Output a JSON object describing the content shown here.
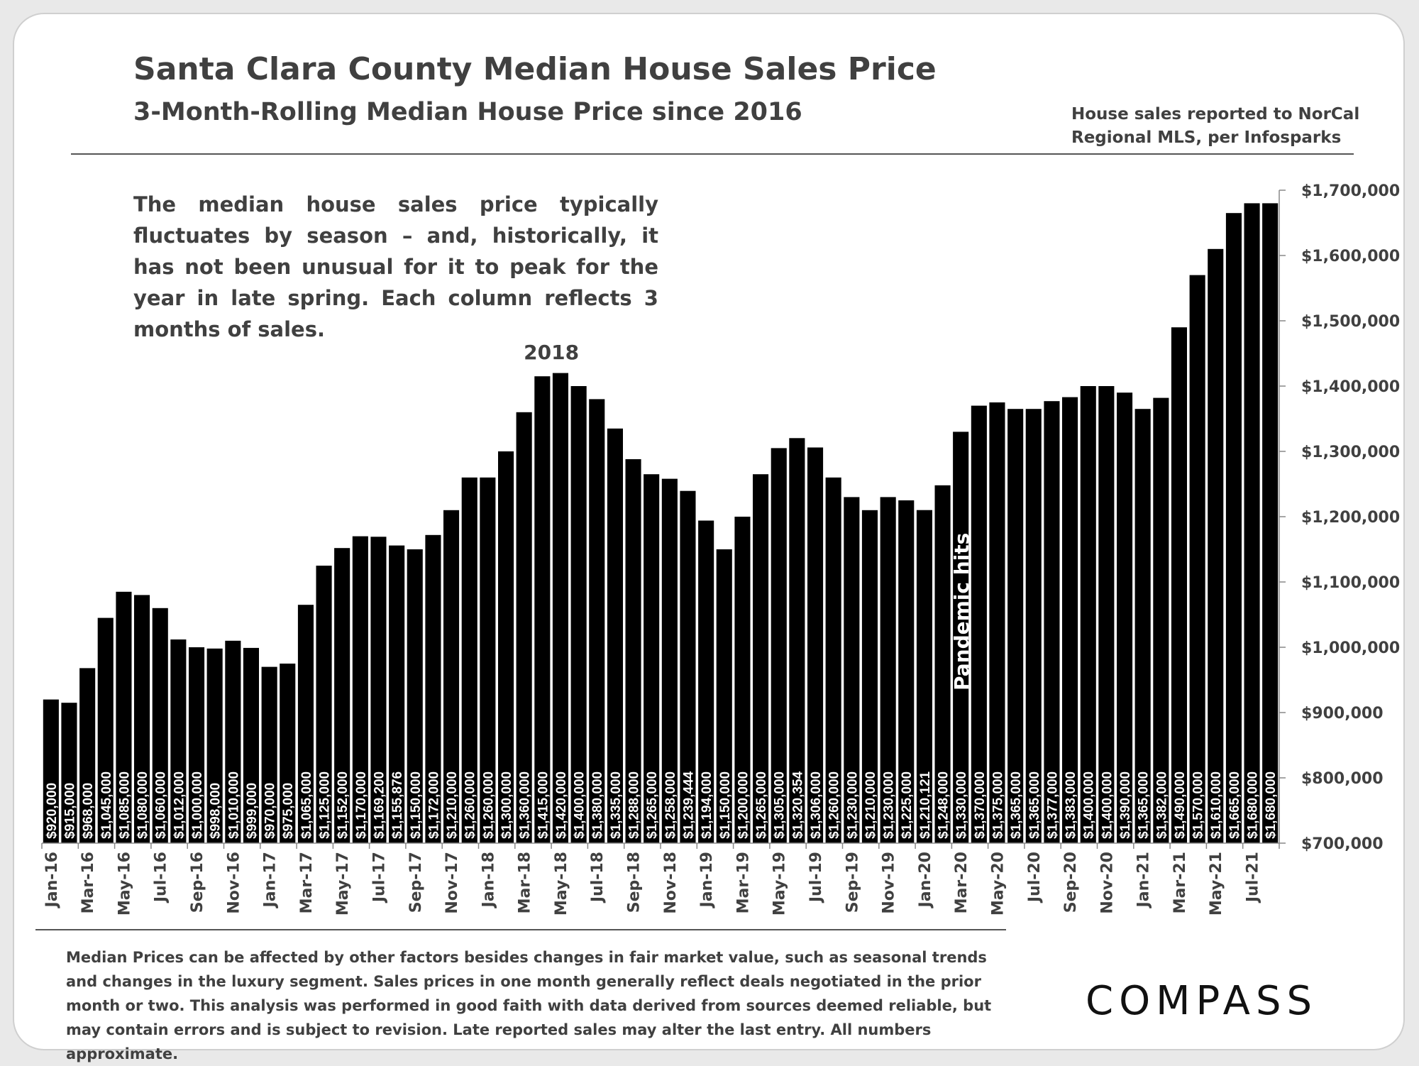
{
  "header": {
    "title": "Santa Clara County Median House Sales Price",
    "subtitle": "3-Month-Rolling Median House Price since 2016",
    "source_line1": "House sales reported to NorCal",
    "source_line2": "Regional MLS, per Infosparks"
  },
  "description": "The median house sales price typically fluctuates by season – and, historically, it has not been unusual for it to peak for the year in late spring. Each column reflects 3 months of sales.",
  "footnote": "Median Prices can be affected by other factors besides changes in fair market value, such as seasonal trends and changes in the luxury segment. Sales prices in one month generally reflect deals negotiated in the prior month or two. This analysis was performed in good faith with data derived from sources deemed reliable, but may contain errors and is subject to revision. Late reported sales may alter the last entry. All numbers approximate.",
  "logo": "COMPASS",
  "colors": {
    "bar": "#000000",
    "bar_label": "#ffffff",
    "text": "#404040",
    "rule": "#555555"
  },
  "chart_data": {
    "type": "bar",
    "title": "Santa Clara County Median House Sales Price",
    "subtitle": "3-Month-Rolling Median House Price since 2016",
    "categories": [
      "Jan-16",
      "Feb-16",
      "Mar-16",
      "Apr-16",
      "May-16",
      "Jun-16",
      "Jul-16",
      "Aug-16",
      "Sep-16",
      "Oct-16",
      "Nov-16",
      "Dec-16",
      "Jan-17",
      "Feb-17",
      "Mar-17",
      "Apr-17",
      "May-17",
      "Jun-17",
      "Jul-17",
      "Aug-17",
      "Sep-17",
      "Oct-17",
      "Nov-17",
      "Dec-17",
      "Jan-18",
      "Feb-18",
      "Mar-18",
      "Apr-18",
      "May-18",
      "Jun-18",
      "Jul-18",
      "Aug-18",
      "Sep-18",
      "Oct-18",
      "Nov-18",
      "Dec-18",
      "Jan-19",
      "Feb-19",
      "Mar-19",
      "Apr-19",
      "May-19",
      "Jun-19",
      "Jul-19",
      "Aug-19",
      "Sep-19",
      "Oct-19",
      "Nov-19",
      "Dec-19",
      "Jan-20",
      "Feb-20",
      "Mar-20",
      "Apr-20",
      "May-20",
      "Jun-20",
      "Jul-20",
      "Aug-20",
      "Sep-20",
      "Oct-20",
      "Nov-20",
      "Dec-20",
      "Jan-21",
      "Feb-21",
      "Mar-21",
      "Apr-21",
      "May-21",
      "Jun-21",
      "Jul-21",
      "Aug-21"
    ],
    "x_tick_labels": [
      "Jan-16",
      "",
      "Mar-16",
      "",
      "May-16",
      "",
      "Jul-16",
      "",
      "Sep-16",
      "",
      "Nov-16",
      "",
      "Jan-17",
      "",
      "Mar-17",
      "",
      "May-17",
      "",
      "Jul-17",
      "",
      "Sep-17",
      "",
      "Nov-17",
      "",
      "Jan-18",
      "",
      "Mar-18",
      "",
      "May-18",
      "",
      "Jul-18",
      "",
      "Sep-18",
      "",
      "Nov-18",
      "",
      "Jan-19",
      "",
      "Mar-19",
      "",
      "May-19",
      "",
      "Jul-19",
      "",
      "Sep-19",
      "",
      "Nov-19",
      "",
      "Jan-20",
      "",
      "Mar-20",
      "",
      "May-20",
      "",
      "Jul-20",
      "",
      "Sep-20",
      "",
      "Nov-20",
      "",
      "Jan-21",
      "",
      "Mar-21",
      "",
      "May-21",
      "",
      "Jul-21",
      ""
    ],
    "values": [
      920000,
      915000,
      968000,
      1045000,
      1085000,
      1080000,
      1060000,
      1012000,
      1000000,
      998000,
      1010000,
      999000,
      970000,
      975000,
      1065000,
      1125000,
      1152000,
      1170000,
      1169200,
      1155876,
      1150000,
      1172000,
      1210000,
      1260000,
      1260000,
      1300000,
      1360000,
      1415000,
      1420000,
      1400000,
      1380000,
      1335000,
      1288000,
      1265000,
      1258000,
      1239444,
      1194000,
      1150000,
      1200000,
      1265000,
      1305000,
      1320354,
      1306000,
      1260000,
      1230000,
      1210000,
      1230000,
      1225000,
      1210121,
      1248000,
      1330000,
      1370000,
      1375000,
      1365000,
      1365000,
      1377000,
      1383000,
      1400000,
      1400000,
      1390000,
      1365000,
      1382000,
      1490000,
      1570000,
      1610000,
      1665000,
      1680000,
      1680000
    ],
    "bar_labels": [
      "$920,000",
      "$915,000",
      "$968,000",
      "$1,045,000",
      "$1,085,000",
      "$1,080,000",
      "$1,060,000",
      "$1,012,000",
      "$1,000,000",
      "$998,000",
      "$1,010,000",
      "$999,000",
      "$970,000",
      "$975,000",
      "$1,065,000",
      "$1,125,000",
      "$1,152,000",
      "$1,170,000",
      "$1,169,200",
      "$1,155,876",
      "$1,150,000",
      "$1,172,000",
      "$1,210,000",
      "$1,260,000",
      "$1,260,000",
      "$1,300,000",
      "$1,360,000",
      "$1,415,000",
      "$1,420,000",
      "$1,400,000",
      "$1,380,000",
      "$1,335,000",
      "$1,288,000",
      "$1,265,000",
      "$1,258,000",
      "$1,239,444",
      "$1,194,000",
      "$1,150,000",
      "$1,200,000",
      "$1,265,000",
      "$1,305,000",
      "$1,320,354",
      "$1,306,000",
      "$1,260,000",
      "$1,230,000",
      "$1,210,000",
      "$1,230,000",
      "$1,225,000",
      "$1,210,121",
      "$1,248,000",
      "$1,330,000",
      "$1,370,000",
      "$1,375,000",
      "$1,365,000",
      "$1,365,000",
      "$1,377,000",
      "$1,383,000",
      "$1,400,000",
      "$1,400,000",
      "$1,390,000",
      "$1,365,000",
      "$1,382,000",
      "$1,490,000",
      "$1,570,000",
      "$1,610,000",
      "$1,665,000",
      "$1,680,000",
      "$1,680,000"
    ],
    "y_ticks": [
      700000,
      800000,
      900000,
      1000000,
      1100000,
      1200000,
      1300000,
      1400000,
      1500000,
      1600000,
      1700000
    ],
    "y_tick_labels": [
      "$700,000",
      "$800,000",
      "$900,000",
      "$1,000,000",
      "$1,100,000",
      "$1,200,000",
      "$1,300,000",
      "$1,400,000",
      "$1,500,000",
      "$1,600,000",
      "$1,700,000"
    ],
    "ylim": [
      700000,
      1700000
    ],
    "y_axis_side": "right",
    "xlabel": "",
    "ylabel": "",
    "grid": false,
    "legend": "none",
    "annotations": [
      {
        "text": "2018",
        "category": "Apr-18"
      },
      {
        "text": "Pandemic hits",
        "category": "Mar-20"
      }
    ]
  }
}
